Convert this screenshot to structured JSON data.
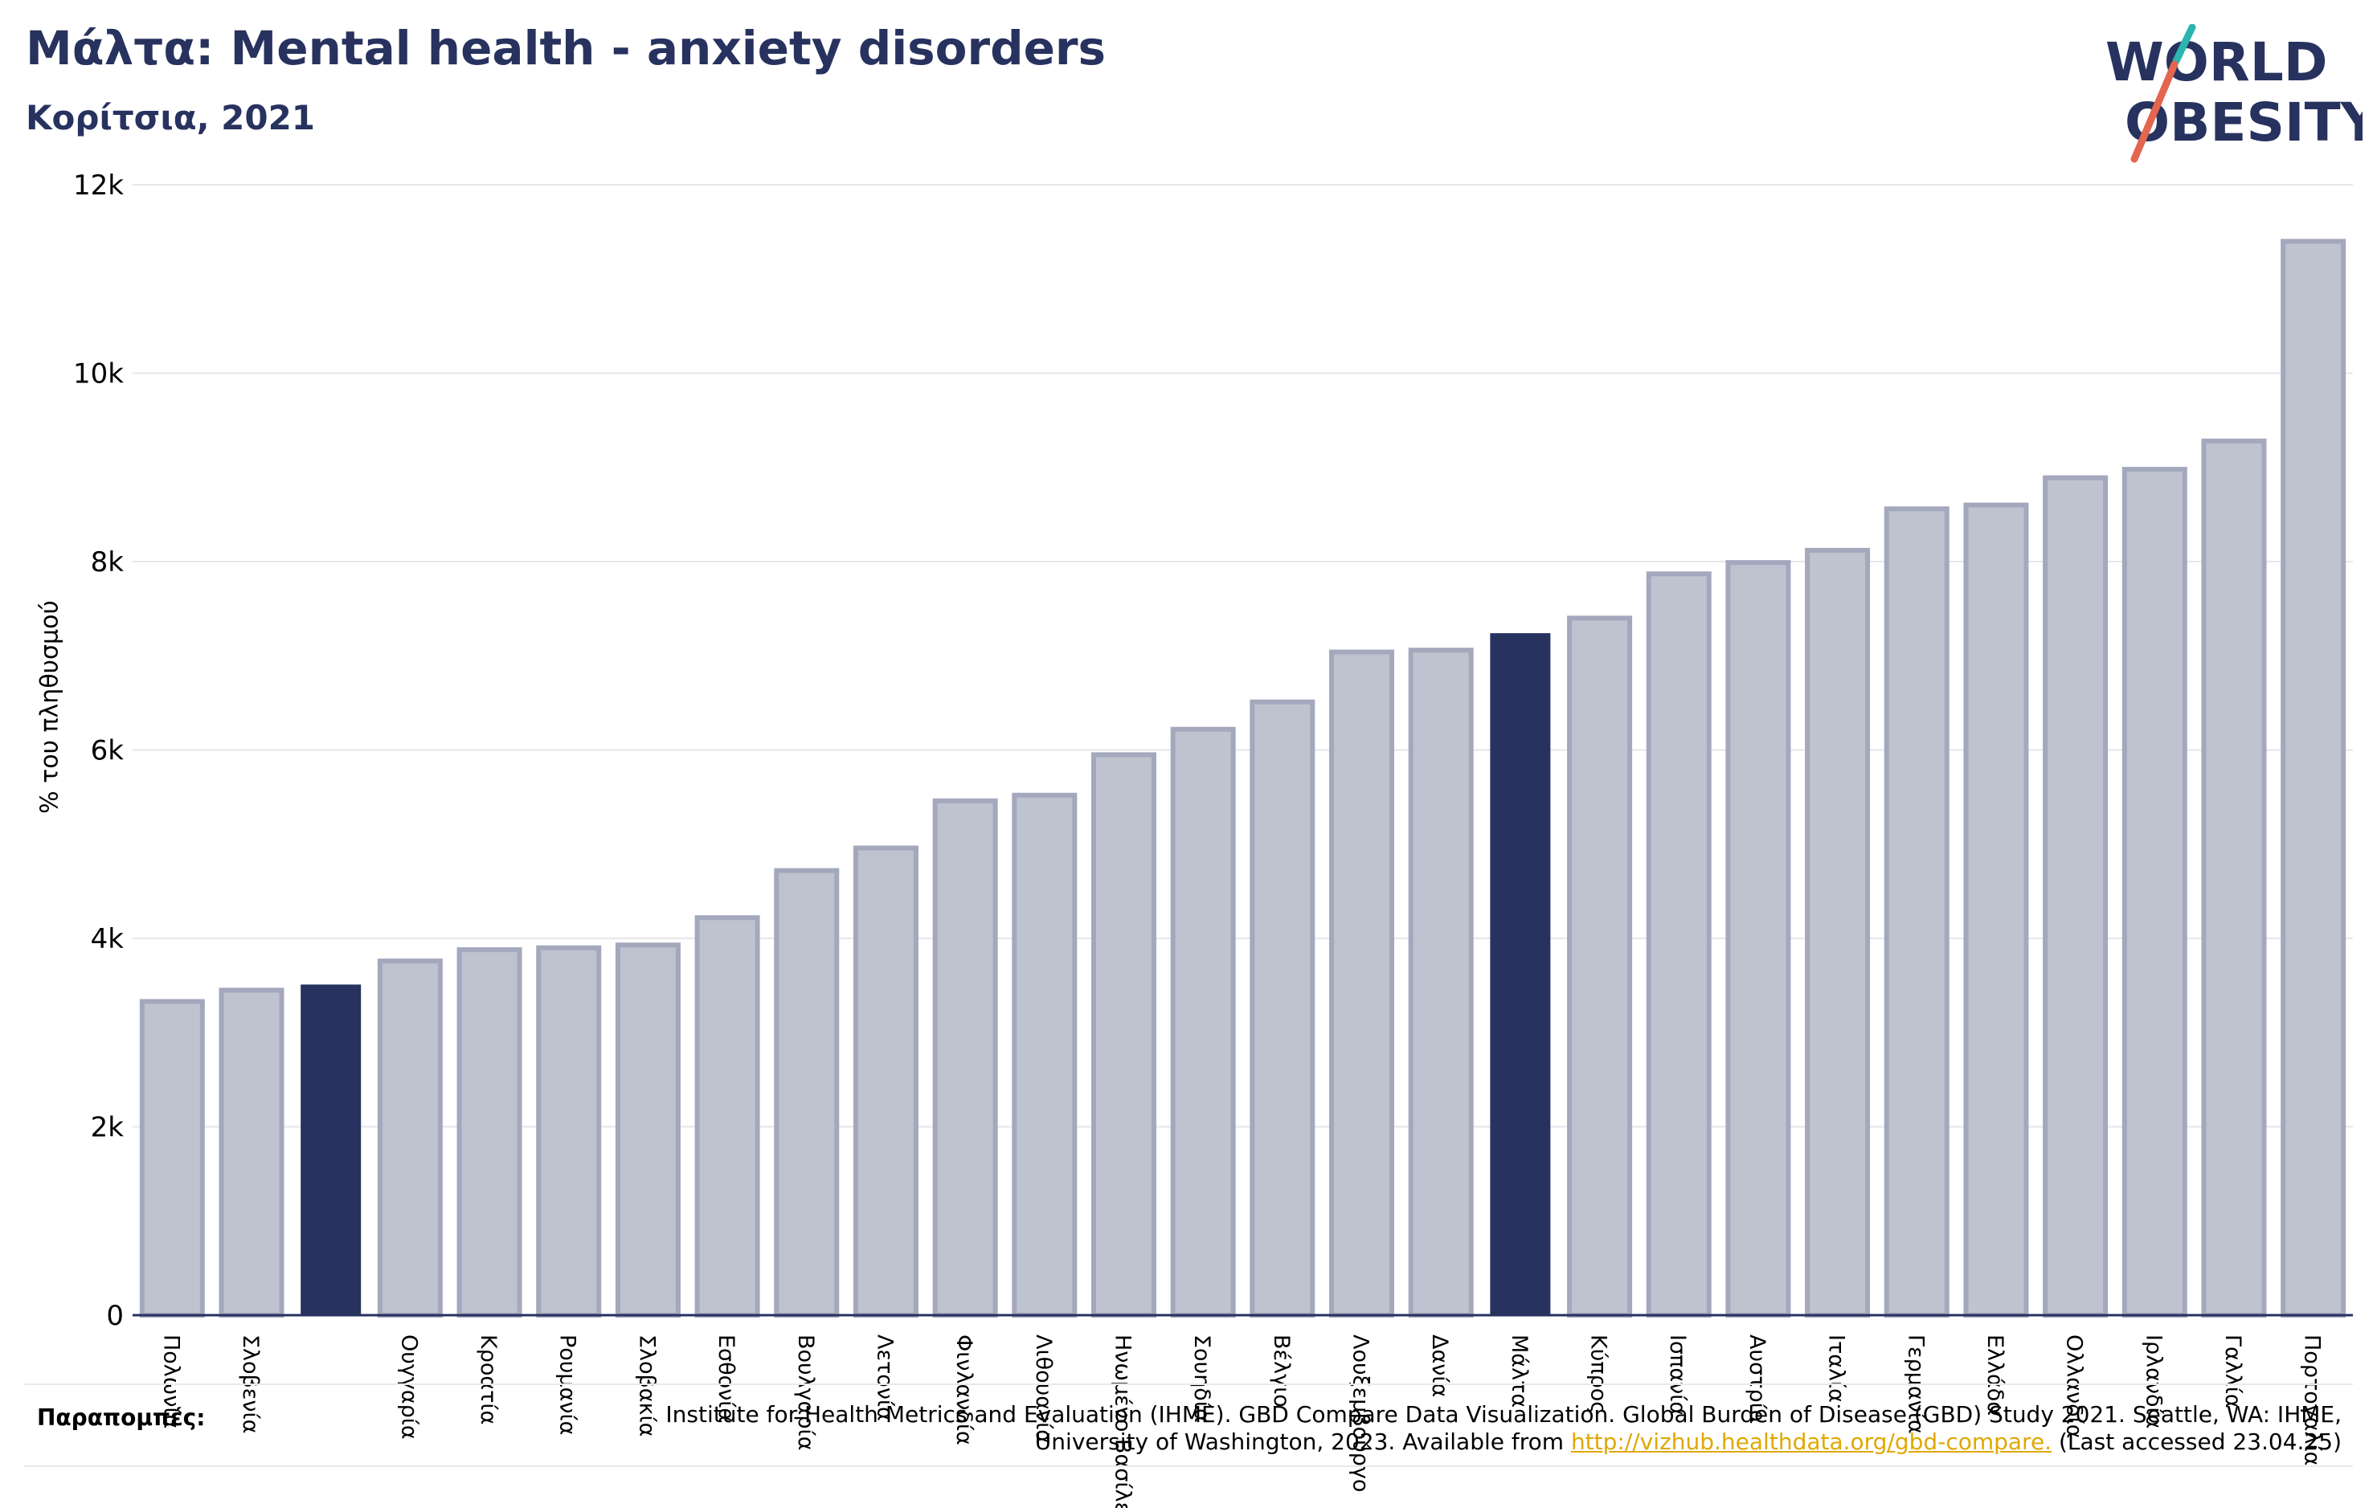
{
  "title": "Μάλτα: Mental health - anxiety disorders",
  "subtitle": "Κορίτσια, 2021",
  "logo": {
    "line1": "WORLD",
    "line2": "OBESITY",
    "slash_colors": [
      "#2cb5b0",
      "#e4664f"
    ]
  },
  "references": {
    "label": "Παραπομπές:",
    "text_before": "Institute for Health Metrics and Evaluation (IHME). GBD Compare Data Visualization. Global Burden of Disease (GBD) Study 2021. Seattle, WA: IHME, University of Washington, 2023. Available from ",
    "link": "http://vizhub.healthdata.org/gbd-compare.",
    "text_after": " (Last accessed 23.04.25)"
  },
  "colors": {
    "bar": "#bfc2cf",
    "bar_stroke": "#a3a8bd",
    "highlight": "#27325f",
    "grid": "#e6e6ec",
    "axis": "#27325f"
  },
  "chart_data": {
    "type": "bar",
    "ylabel": "% του πληθυσμού",
    "ylim": [
      0,
      12000
    ],
    "yticks": [
      0,
      2000,
      4000,
      6000,
      8000,
      10000,
      12000
    ],
    "ytick_labels": [
      "0",
      "2k",
      "4k",
      "6k",
      "8k",
      "10k",
      "12k"
    ],
    "grid": true,
    "categories": [
      "Πολωνία",
      "Σλοβενία",
      "",
      "Ουγγαρία",
      "Κροατία",
      "Ρουμανία",
      "Σλοβακία",
      "Εσθονία",
      "Βουλγαρία",
      "Λετονία",
      "Φινλανδία",
      "Λιθουανία",
      "Ηνωμένο Βασίλειο",
      "Σουηδία",
      "Βέλγιο",
      "Λουξεμβούργο",
      "Δανία",
      "Μάλτα",
      "Κύπρος",
      "Ισπανία",
      "Αυστρία",
      "Ιταλία",
      "Γερμανία",
      "Ελλάδα",
      "Ολλανδία",
      "Ιρλανδία",
      "Γαλλία",
      "Πορτογαλία"
    ],
    "values": [
      3330,
      3450,
      3510,
      3760,
      3880,
      3900,
      3930,
      4220,
      4720,
      4960,
      5460,
      5520,
      5950,
      6220,
      6510,
      7040,
      7060,
      7240,
      7400,
      7870,
      7990,
      8120,
      8560,
      8600,
      8890,
      8980,
      9280,
      11400
    ],
    "highlighted": [
      2,
      17
    ]
  }
}
